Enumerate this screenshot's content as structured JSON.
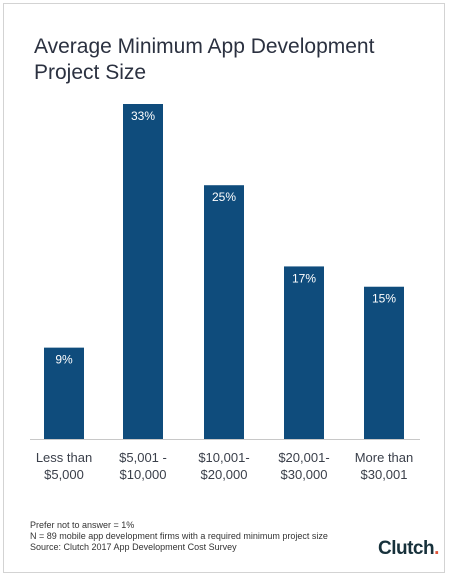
{
  "chart_data": {
    "type": "bar",
    "title_lines": [
      "Average Minimum App Development",
      "Project Size"
    ],
    "categories": [
      [
        "Less than",
        "$5,000"
      ],
      [
        "$5,001 -",
        "$10,000"
      ],
      [
        "$10,001-",
        "$20,000"
      ],
      [
        "$20,001-",
        "$30,000"
      ],
      [
        "More than",
        "$30,001"
      ]
    ],
    "values": [
      9,
      33,
      25,
      17,
      15
    ],
    "value_labels": [
      "9%",
      "33%",
      "25%",
      "17%",
      "15%"
    ],
    "ylim": [
      0,
      33
    ],
    "bar_color": "#0f4c7c",
    "grid": false
  },
  "footer": {
    "note": "Prefer not to answer = 1%",
    "sample": "N = 89 mobile app development firms with a required minimum project size",
    "source": "Source: Clutch 2017 App Development Cost Survey"
  },
  "logo": {
    "text": "Clutch",
    "dot": ".",
    "dot_color": "#e0563b"
  }
}
